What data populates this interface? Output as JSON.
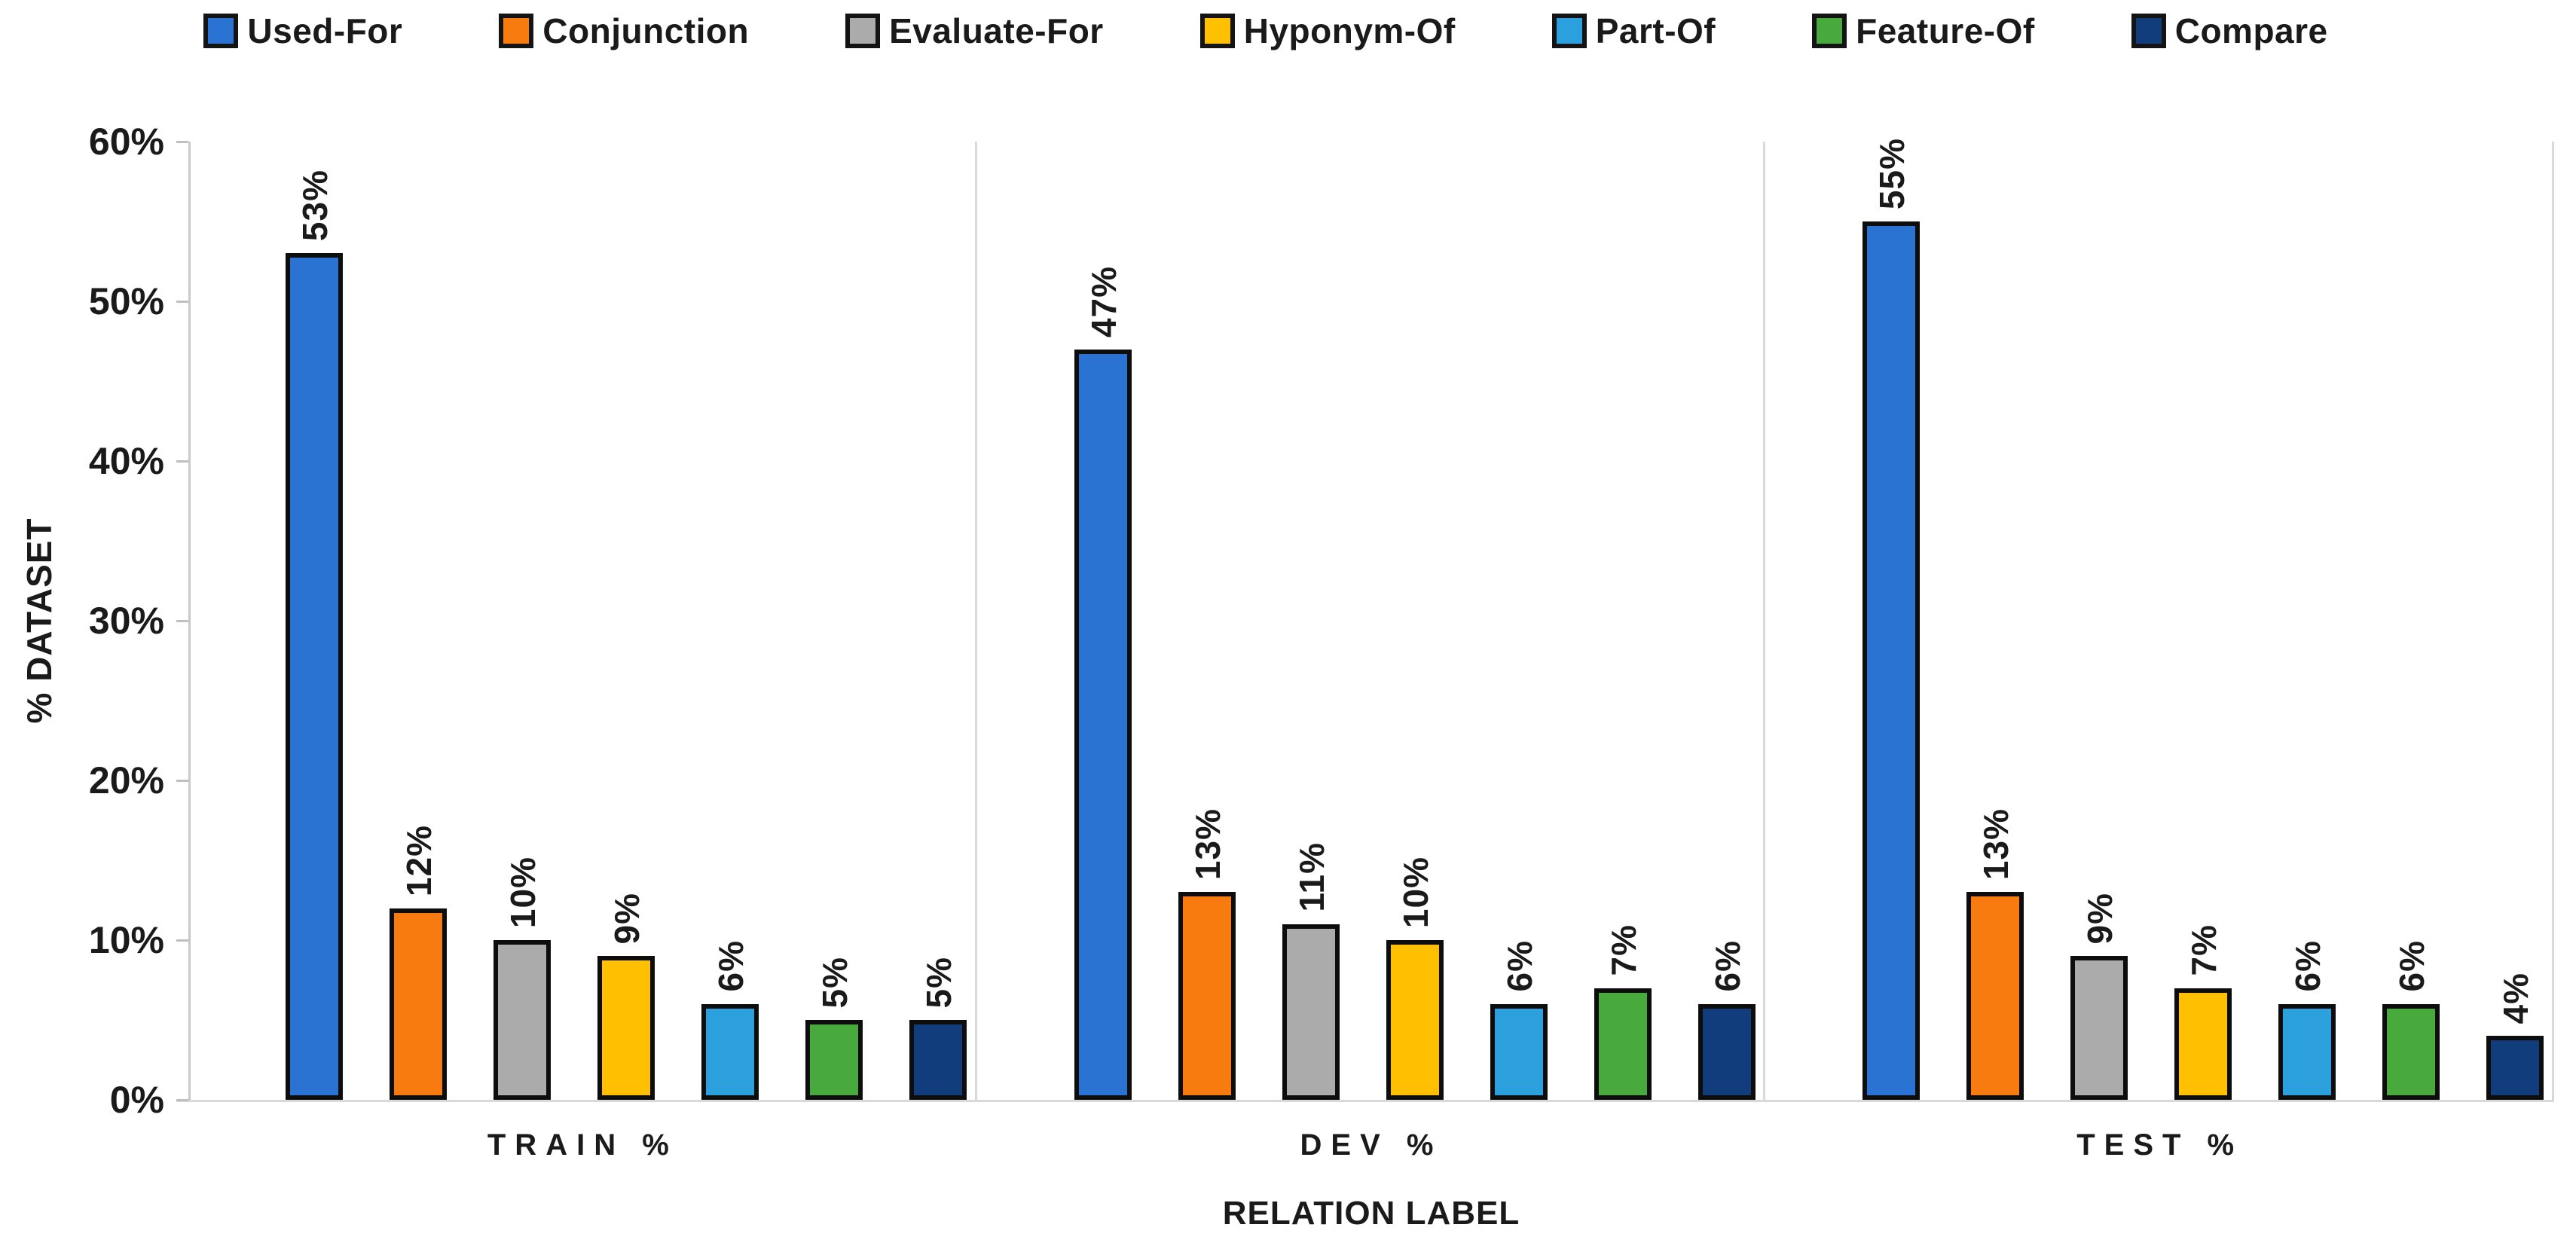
{
  "chart_data": {
    "type": "bar",
    "title": "",
    "xlabel": "RELATION LABEL",
    "ylabel": "% DATASET",
    "ylim": [
      0,
      60
    ],
    "ytick_step": 10,
    "ytick_labels": [
      "0%",
      "10%",
      "20%",
      "30%",
      "40%",
      "50%",
      "60%"
    ],
    "categories": [
      "TRAIN %",
      "DEV %",
      "TEST %"
    ],
    "series": [
      {
        "name": "Used-For",
        "color": "#2A73D2",
        "values": [
          53,
          47,
          55
        ]
      },
      {
        "name": "Conjunction",
        "color": "#F87B10",
        "values": [
          12,
          13,
          13
        ]
      },
      {
        "name": "Evaluate-For",
        "color": "#ABABAB",
        "values": [
          10,
          11,
          9
        ]
      },
      {
        "name": "Hyponym-Of",
        "color": "#FEC001",
        "values": [
          9,
          10,
          7
        ]
      },
      {
        "name": "Part-Of",
        "color": "#2CA0DC",
        "values": [
          6,
          6,
          6
        ]
      },
      {
        "name": "Feature-Of",
        "color": "#48A93C",
        "values": [
          5,
          7,
          6
        ]
      },
      {
        "name": "Compare",
        "color": "#113D7D",
        "values": [
          5,
          6,
          4
        ]
      }
    ],
    "data_labels": {
      "TRAIN %": [
        "53%",
        "12%",
        "10%",
        "9%",
        "6%",
        "5%",
        "5%"
      ],
      "DEV %": [
        "47%",
        "13%",
        "11%",
        "10%",
        "6%",
        "7%",
        "6%"
      ],
      "TEST %": [
        "55%",
        "13%",
        "9%",
        "7%",
        "6%",
        "6%",
        "4%"
      ]
    },
    "legend_position": "top",
    "grid": "none"
  },
  "style_colors": {
    "text": "#1A1A1A",
    "axis_line": "#C9C9C9",
    "tick": "#BFBFBF",
    "separator": "#D9D9D9",
    "bar_outline": "#0D0D0D",
    "background": "#FFFFFF"
  }
}
